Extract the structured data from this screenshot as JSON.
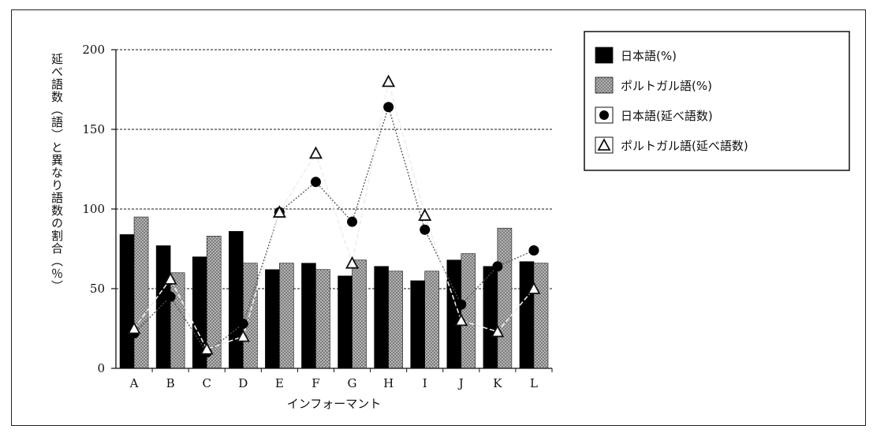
{
  "chart_data": {
    "type": "bar",
    "categories": [
      "A",
      "B",
      "C",
      "D",
      "E",
      "F",
      "G",
      "H",
      "I",
      "J",
      "K",
      "L"
    ],
    "xlabel": "インフォーマント",
    "ylabel": "延べ語数（語）と異なり語数の割合（％）",
    "ylim": [
      0,
      200
    ],
    "yticks": [
      0,
      50,
      100,
      150,
      200
    ],
    "grid": "horizontal dashed lines at 50, 100, 150, 200",
    "legend_position": "top-right, outside plot area",
    "series": [
      {
        "name": "日本語(%)",
        "kind": "bar",
        "color": "#000000",
        "values": [
          84,
          77,
          70,
          86,
          62,
          66,
          58,
          64,
          55,
          68,
          64,
          67
        ]
      },
      {
        "name": "ポルトガル語(%)",
        "kind": "bar",
        "color": "#9a9a9a",
        "pattern": "dotted",
        "values": [
          95,
          60,
          83,
          66,
          66,
          62,
          68,
          61,
          61,
          72,
          88,
          66
        ]
      },
      {
        "name": "日本語(延べ語数)",
        "kind": "line",
        "marker": "filled-circle",
        "color": "#000000",
        "values": [
          22,
          45,
          10,
          28,
          98,
          117,
          92,
          164,
          87,
          40,
          64,
          74
        ]
      },
      {
        "name": "ポルトガル語(延べ語数)",
        "kind": "line",
        "marker": "open-triangle",
        "color": "#ffffff",
        "values": [
          25,
          56,
          12,
          20,
          98,
          135,
          66,
          180,
          96,
          30,
          23,
          50
        ]
      }
    ]
  }
}
